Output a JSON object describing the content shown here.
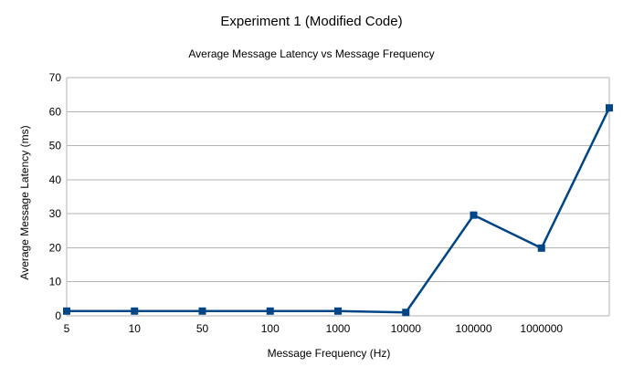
{
  "chart_data": {
    "type": "line",
    "title": "Experiment 1 (Modified Code)",
    "subtitle": "Average Message Latency vs Message Frequency",
    "xlabel": "Message Frequency (Hz)",
    "ylabel": "Average Message Latency (ms)",
    "categories": [
      "5",
      "10",
      "50",
      "100",
      "1000",
      "10000",
      "100000",
      "1000000",
      ""
    ],
    "ylim": [
      0,
      70
    ],
    "yticks": [
      0,
      10,
      20,
      30,
      40,
      50,
      60,
      70
    ],
    "grid": true,
    "legend": "none",
    "series": [
      {
        "values": [
          1.4,
          1.4,
          1.4,
          1.4,
          1.4,
          1.0,
          29.6,
          19.9,
          61.1
        ],
        "color": "#004586"
      }
    ]
  }
}
